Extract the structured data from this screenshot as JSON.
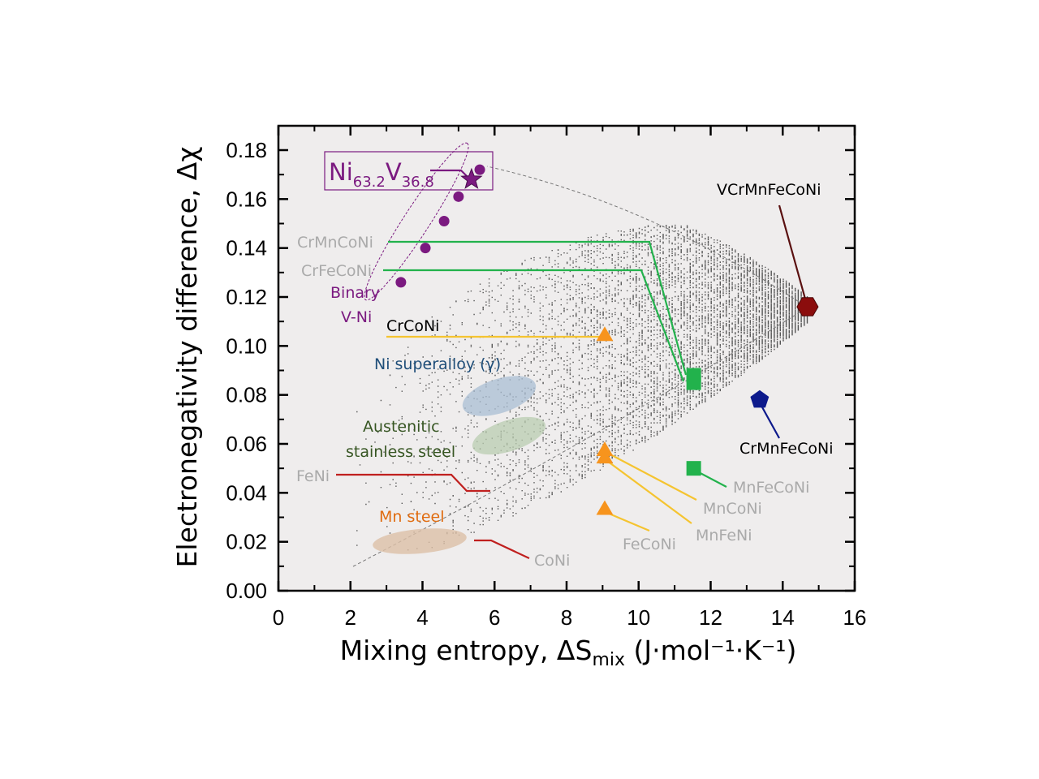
{
  "chart_data": {
    "type": "scatter",
    "xlabel": "Mixing entropy, ΔS",
    "xlabel_sub": "mix",
    "xlabel_unit": " (J·mol⁻¹·K⁻¹)",
    "ylabel": "Electronegativity difference, Δχ",
    "xlim": [
      0,
      16
    ],
    "ylim": [
      0,
      0.19
    ],
    "xticks": [
      0,
      2,
      4,
      6,
      8,
      10,
      12,
      14,
      16
    ],
    "yticks": [
      "0.00",
      "0.02",
      "0.04",
      "0.06",
      "0.08",
      "0.10",
      "0.12",
      "0.14",
      "0.16",
      "0.18"
    ],
    "background": "#efeded",
    "background_cloud": {
      "color": "#555555"
    },
    "series": [
      {
        "name": "Binary V-Ni",
        "marker": "circle",
        "color": "#7b1a80",
        "points": [
          [
            3.4,
            0.126
          ],
          [
            4.08,
            0.14
          ],
          [
            4.6,
            0.151
          ],
          [
            5.0,
            0.161
          ],
          [
            5.59,
            0.172
          ]
        ]
      },
      {
        "name": "Ni63.2V36.8",
        "marker": "star",
        "color": "#7b1a80",
        "points": [
          [
            5.36,
            0.168
          ]
        ]
      },
      {
        "marker": "triangle",
        "color": "#f7941d",
        "points": [
          {
            "label": "CrCoNi",
            "x": 9.06,
            "y": 0.104
          },
          {
            "label": "MnCoNi",
            "x": 9.06,
            "y": 0.057
          },
          {
            "label": "MnFeNi",
            "x": 9.06,
            "y": 0.054
          },
          {
            "label": "FeCoNi",
            "x": 9.06,
            "y": 0.033
          }
        ]
      },
      {
        "marker": "square",
        "color": "#22b24c",
        "points": [
          {
            "label": "CrMnCoNi",
            "x": 11.53,
            "y": 0.088
          },
          {
            "label": "CrFeCoNi",
            "x": 11.53,
            "y": 0.085
          },
          {
            "label": "MnFeCoNi",
            "x": 11.53,
            "y": 0.05
          }
        ]
      },
      {
        "marker": "pentagon",
        "color": "#0d1a8c",
        "points": [
          {
            "label": "CrMnFeCoNi",
            "x": 13.36,
            "y": 0.078
          }
        ]
      },
      {
        "marker": "hexagon",
        "color": "#8b0d0d",
        "points": [
          {
            "label": "VCrMnFeCoNi",
            "x": 14.69,
            "y": 0.116
          }
        ]
      }
    ],
    "regions": [
      {
        "label": "Ni superalloy (γ)",
        "color": "#a9bdd3"
      },
      {
        "label": "Austenitic stainless steel",
        "color": "#b9ccb0"
      },
      {
        "label": "Mn steel",
        "color": "#dcbfa6"
      }
    ],
    "annotations": {
      "ni_v": {
        "main": "Ni",
        "sub1": "63.2",
        "mid": "V",
        "sub2": "36.8"
      },
      "binary1": "Binary",
      "binary2": "V-Ni",
      "crmnconi": "CrMnCoNi",
      "crfeconi": "CrFeCoNi",
      "crconi": "CrCoNi",
      "super": "Ni superalloy (γ)",
      "aus1": "Austenitic",
      "aus2": "stainless steel",
      "feni": "FeNi",
      "mnsteel": "Mn steel",
      "coni": "CoNi",
      "vcr": "VCrMnFeCoNi",
      "crmnfe": "CrMnFeCoNi",
      "mnfeconi": "MnFeCoNi",
      "mnconi": "MnCoNi",
      "mnfeni": "MnFeNi",
      "feconi": "FeCoNi"
    }
  }
}
